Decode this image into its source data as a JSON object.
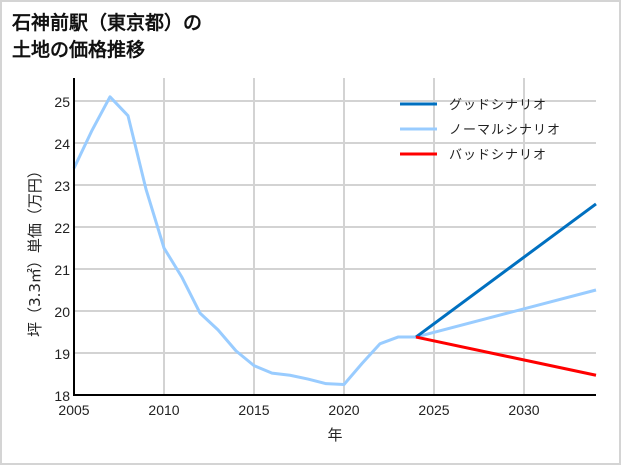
{
  "title": {
    "line1": "石神前駅（東京都）の",
    "line2": "土地の価格推移"
  },
  "colors": {
    "good": "#0070c0",
    "normal": "#99ccff",
    "bad": "#ff0000",
    "grid": "#d3d3d3",
    "axis": "#000000",
    "frame": "#d4d4d4"
  },
  "chart_data": {
    "type": "line",
    "title": "石神前駅（東京都）の土地の価格推移",
    "xlabel": "年",
    "ylabel": "坪（3.3㎡）単価（万円）",
    "xlim": [
      2005,
      2034
    ],
    "ylim": [
      18,
      25.5
    ],
    "xticks": [
      2005,
      2010,
      2015,
      2020,
      2025,
      2030
    ],
    "yticks": [
      18,
      19,
      20,
      21,
      22,
      23,
      24,
      25
    ],
    "grid": true,
    "legend_position": "upper right",
    "series": [
      {
        "name": "ノーマルシナリオ",
        "color": "#99ccff",
        "x": [
          2005,
          2006,
          2007,
          2008,
          2009,
          2010,
          2011,
          2012,
          2013,
          2014,
          2015,
          2016,
          2017,
          2018,
          2019,
          2020,
          2021,
          2022,
          2023,
          2024,
          2034
        ],
        "values": [
          23.4,
          24.3,
          25.1,
          24.65,
          22.9,
          21.5,
          20.8,
          19.95,
          19.55,
          19.05,
          18.7,
          18.52,
          18.47,
          18.38,
          18.27,
          18.25,
          18.75,
          19.22,
          19.38,
          19.38,
          20.5
        ]
      },
      {
        "name": "グッドシナリオ",
        "color": "#0070c0",
        "x": [
          2024,
          2034
        ],
        "values": [
          19.38,
          22.55
        ]
      },
      {
        "name": "バッドシナリオ",
        "color": "#ff0000",
        "x": [
          2024,
          2034
        ],
        "values": [
          19.38,
          18.47
        ]
      }
    ]
  },
  "legend": [
    {
      "label": "グッドシナリオ",
      "color": "#0070c0"
    },
    {
      "label": "ノーマルシナリオ",
      "color": "#99ccff"
    },
    {
      "label": "バッドシナリオ",
      "color": "#ff0000"
    }
  ]
}
